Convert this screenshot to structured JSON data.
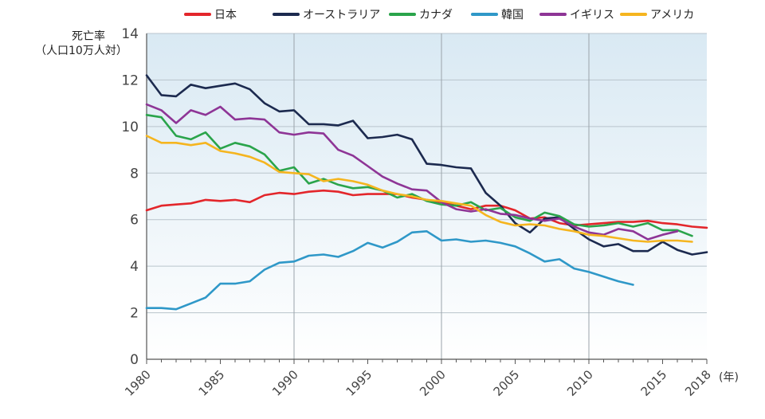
{
  "chart_data": {
    "type": "line",
    "title": "",
    "ylabel_lines": [
      "死亡率",
      "（人口10万人対）"
    ],
    "xlabel": "",
    "x_unit": "(年)",
    "xlim": [
      1980,
      2018
    ],
    "ylim": [
      0,
      14
    ],
    "y_ticks": [
      0,
      2,
      4,
      6,
      8,
      10,
      12,
      14
    ],
    "x_ticks": [
      1980,
      1985,
      1990,
      1995,
      2000,
      2005,
      2010,
      2015,
      2018
    ],
    "x_major_grid": [
      1990,
      2000,
      2010
    ],
    "grid": true,
    "legend_position": "top",
    "x": [
      1980,
      1981,
      1982,
      1983,
      1984,
      1985,
      1986,
      1987,
      1988,
      1989,
      1990,
      1991,
      1992,
      1993,
      1994,
      1995,
      1996,
      1997,
      1998,
      1999,
      2000,
      2001,
      2002,
      2003,
      2004,
      2005,
      2006,
      2007,
      2008,
      2009,
      2010,
      2011,
      2012,
      2013,
      2014,
      2015,
      2016,
      2017,
      2018
    ],
    "series": [
      {
        "name": "日本",
        "color": "#e3262b",
        "values": [
          6.4,
          6.6,
          6.65,
          6.7,
          6.85,
          6.8,
          6.85,
          6.75,
          7.05,
          7.15,
          7.1,
          7.2,
          7.25,
          7.2,
          7.05,
          7.1,
          7.1,
          7.1,
          6.95,
          6.85,
          6.75,
          6.6,
          6.45,
          6.6,
          6.6,
          6.4,
          6.05,
          6.1,
          5.85,
          5.75,
          5.8,
          5.85,
          5.9,
          5.9,
          5.95,
          5.85,
          5.8,
          5.7,
          5.65
        ]
      },
      {
        "name": "オーストラリア",
        "color": "#1c2a4f",
        "values": [
          12.2,
          11.35,
          11.3,
          11.8,
          11.65,
          11.75,
          11.85,
          11.6,
          11.0,
          10.65,
          10.7,
          10.1,
          10.1,
          10.05,
          10.25,
          9.5,
          9.55,
          9.65,
          9.45,
          8.4,
          8.35,
          8.25,
          8.2,
          7.15,
          6.6,
          5.85,
          5.45,
          6.05,
          6.1,
          5.6,
          5.15,
          4.85,
          4.95,
          4.65,
          4.65,
          5.05,
          4.7,
          4.5,
          4.6
        ]
      },
      {
        "name": "カナダ",
        "color": "#2aa44b",
        "values": [
          10.5,
          10.4,
          9.6,
          9.45,
          9.75,
          9.05,
          9.3,
          9.15,
          8.8,
          8.1,
          8.25,
          7.55,
          7.75,
          7.5,
          7.35,
          7.4,
          7.25,
          6.95,
          7.1,
          6.8,
          6.65,
          6.6,
          6.75,
          6.4,
          6.5,
          6.1,
          5.95,
          6.3,
          6.15,
          5.8,
          5.7,
          5.75,
          5.85,
          5.7,
          5.85,
          5.55,
          5.55,
          5.3,
          null
        ]
      },
      {
        "name": "韓国",
        "color": "#2f98c8",
        "values": [
          2.2,
          2.2,
          2.15,
          2.4,
          2.65,
          3.25,
          3.25,
          3.35,
          3.85,
          4.15,
          4.2,
          4.45,
          4.5,
          4.4,
          4.65,
          5.0,
          4.8,
          5.05,
          5.45,
          5.5,
          5.1,
          5.15,
          5.05,
          5.1,
          5.0,
          4.85,
          4.55,
          4.2,
          4.3,
          3.9,
          3.75,
          3.55,
          3.35,
          3.2,
          null,
          null,
          null,
          null,
          null
        ]
      },
      {
        "name": "イギリス",
        "color": "#8e3596",
        "values": [
          10.95,
          10.7,
          10.15,
          10.7,
          10.5,
          10.85,
          10.3,
          10.35,
          10.3,
          9.75,
          9.65,
          9.75,
          9.7,
          9.0,
          8.75,
          8.3,
          7.85,
          7.55,
          7.3,
          7.25,
          6.75,
          6.45,
          6.35,
          6.45,
          6.25,
          6.2,
          6.05,
          5.95,
          6.05,
          5.7,
          5.45,
          5.35,
          5.6,
          5.5,
          5.15,
          5.35,
          5.5,
          null,
          null
        ]
      },
      {
        "name": "アメリカ",
        "color": "#f5b51f",
        "values": [
          9.6,
          9.3,
          9.3,
          9.2,
          9.3,
          8.95,
          8.85,
          8.7,
          8.45,
          8.05,
          8.0,
          7.95,
          7.65,
          7.75,
          7.65,
          7.5,
          7.25,
          7.1,
          7.0,
          6.85,
          6.8,
          6.7,
          6.6,
          6.2,
          5.9,
          5.75,
          5.8,
          5.75,
          5.6,
          5.5,
          5.35,
          5.3,
          5.2,
          5.1,
          5.05,
          5.1,
          5.1,
          5.05,
          null
        ]
      }
    ]
  }
}
